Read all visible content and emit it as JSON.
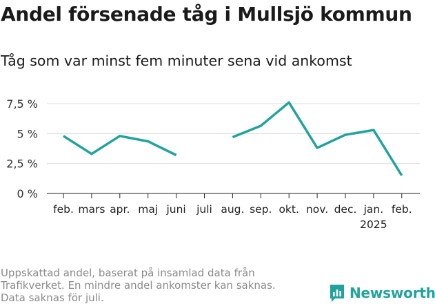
{
  "title": "Andel försenade tåg i Mullsjö kommun",
  "subtitle": "Tåg som var minst fem minuter sena vid ankomst",
  "footnote": [
    "Uppskattad andel, baserat på insamlad data från",
    "Trafikverket. En mindre andel ankomster kan saknas.",
    "Data saknas för juli."
  ],
  "brand": {
    "name": "Newsworthy",
    "icon": "newsworthy-logo-icon",
    "color": "#20a39c"
  },
  "chart_data": {
    "type": "line",
    "title": "Andel försenade tåg i Mullsjö kommun",
    "subtitle": "Tåg som var minst fem minuter sena vid ankomst",
    "xlabel": "",
    "ylabel": "",
    "categories": [
      "feb.",
      "mars",
      "apr.",
      "maj",
      "juni",
      "juli",
      "aug.",
      "sep.",
      "okt.",
      "nov.",
      "dec.",
      "jan.",
      "feb."
    ],
    "year_label": {
      "category_index": 11,
      "text": "2025"
    },
    "series": [
      {
        "values": [
          4.8,
          3.3,
          4.8,
          4.35,
          3.2,
          null,
          4.7,
          5.65,
          7.6,
          3.8,
          4.9,
          5.3,
          1.5
        ],
        "color": "#20a39c"
      }
    ],
    "yticks": [
      0,
      2.5,
      5,
      7.5
    ],
    "ytick_labels": [
      "0 %",
      "2,5 %",
      "5 %",
      "7,5 %"
    ],
    "ylim": [
      0,
      7.8
    ],
    "grid": true,
    "legend": "none"
  }
}
